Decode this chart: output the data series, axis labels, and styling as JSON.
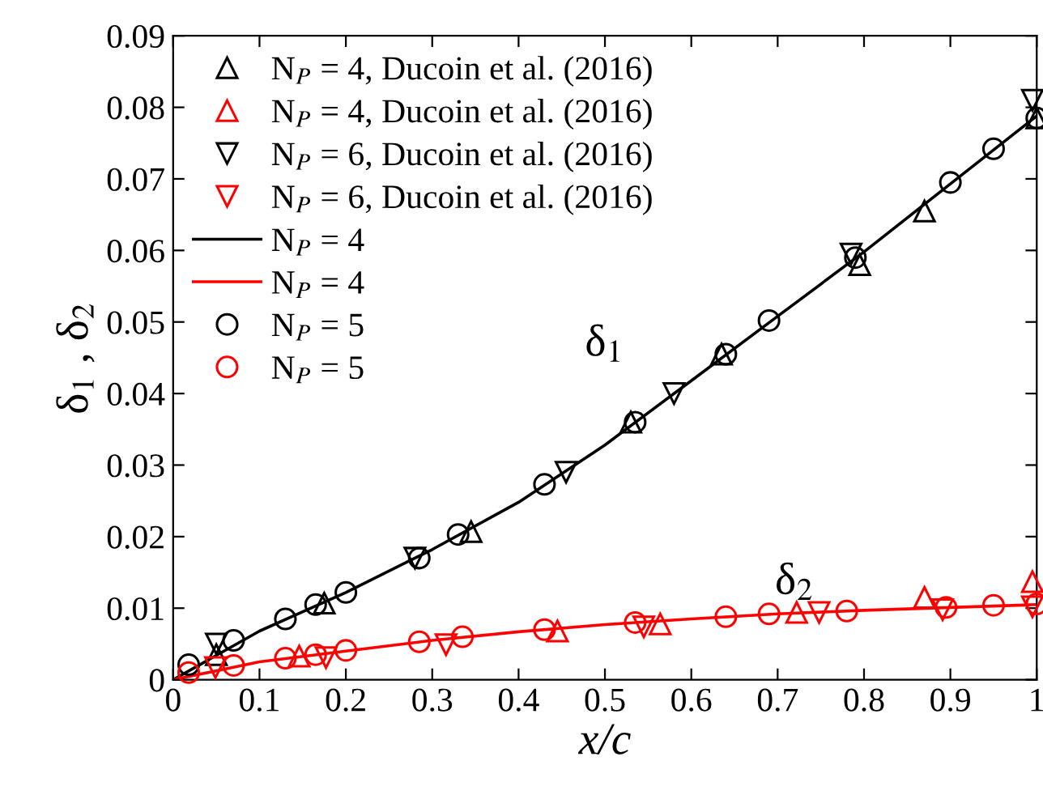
{
  "chart_data": {
    "type": "scatter",
    "xlabel": "x/c",
    "ylabel": "δ$_{1}$ , δ$_{2}$",
    "xlim": [
      0,
      1
    ],
    "ylim": [
      0,
      0.09
    ],
    "xticks": [
      0,
      0.1,
      0.2,
      0.3,
      0.4,
      0.5,
      0.6,
      0.7,
      0.8,
      0.9,
      1
    ],
    "yticks": [
      0,
      0.01,
      0.02,
      0.03,
      0.04,
      0.05,
      0.06,
      0.07,
      0.08,
      0.09
    ],
    "legend": "top left",
    "grid": false,
    "annotations": [
      "δ$_{1}$",
      "δ$_{2}$"
    ],
    "series": [
      {
        "marker": "triangle",
        "name": "N$_{P}$ = 4, Ducoin et al. (2016)",
        "color": "#000000",
        "x": [
          0.05,
          0.175,
          0.345,
          0.53,
          0.635,
          0.795,
          0.87,
          1.0
        ],
        "values": [
          0.0035,
          0.0107,
          0.0207,
          0.036,
          0.0455,
          0.058,
          0.0655,
          0.0785
        ]
      },
      {
        "marker": "triangle",
        "name": "N$_{P}$ = 4, Ducoin et al. (2016)",
        "color": "#ff0000",
        "x": [
          0.146,
          0.445,
          0.564,
          0.722,
          0.87,
          0.995
        ],
        "values": [
          0.0033,
          0.0068,
          0.0078,
          0.0094,
          0.0115,
          0.0137
        ]
      },
      {
        "marker": "triangle_down",
        "name": "N$_{P}$ = 6, Ducoin et al. (2016)",
        "color": "#000000",
        "x": [
          0.05,
          0.28,
          0.455,
          0.58,
          0.785,
          0.995
        ],
        "values": [
          0.005,
          0.017,
          0.029,
          0.04,
          0.0595,
          0.081
        ]
      },
      {
        "marker": "triangle_down",
        "name": "N$_{P}$ = 6, Ducoin et al. (2016)",
        "color": "#ff0000",
        "x": [
          0.049,
          0.177,
          0.316,
          0.545,
          0.748,
          0.891,
          0.995
        ],
        "values": [
          0.0017,
          0.0031,
          0.0049,
          0.0074,
          0.0094,
          0.0098,
          0.0102
        ]
      },
      {
        "type": "line",
        "name": "N$_{P}$ = 4",
        "color": "#000000",
        "x": [
          0,
          0.1,
          0.2,
          0.3,
          0.4,
          0.5,
          0.6,
          0.7,
          0.8,
          0.9,
          1.0
        ],
        "values": [
          0,
          0.0068,
          0.0122,
          0.0182,
          0.0248,
          0.0328,
          0.0418,
          0.0508,
          0.0598,
          0.0693,
          0.0788
        ]
      },
      {
        "type": "line",
        "name": "N$_{P}$ = 4",
        "color": "#ff0000",
        "x": [
          0,
          0.1,
          0.2,
          0.3,
          0.4,
          0.5,
          0.6,
          0.7,
          0.8,
          0.9,
          1.0
        ],
        "values": [
          0,
          0.0025,
          0.004,
          0.0055,
          0.0067,
          0.0077,
          0.0085,
          0.0092,
          0.0097,
          0.0101,
          0.0105
        ]
      },
      {
        "marker": "circle",
        "name": "N$_{P}$ = 5",
        "color": "#000000",
        "x": [
          0.018,
          0.07,
          0.13,
          0.165,
          0.2,
          0.285,
          0.33,
          0.43,
          0.535,
          0.64,
          0.69,
          0.79,
          0.9,
          0.95,
          1.0
        ],
        "values": [
          0.0021,
          0.0055,
          0.0085,
          0.0105,
          0.0122,
          0.017,
          0.0203,
          0.0273,
          0.036,
          0.0455,
          0.0502,
          0.059,
          0.0695,
          0.0742,
          0.0785
        ]
      },
      {
        "marker": "circle",
        "name": "N$_{P}$ = 5",
        "color": "#ff0000",
        "x": [
          0.018,
          0.07,
          0.13,
          0.165,
          0.2,
          0.285,
          0.335,
          0.43,
          0.535,
          0.64,
          0.69,
          0.78,
          0.895,
          0.95,
          1.0
        ],
        "values": [
          0.001,
          0.002,
          0.003,
          0.0035,
          0.0041,
          0.0053,
          0.006,
          0.007,
          0.008,
          0.0088,
          0.0092,
          0.0096,
          0.0101,
          0.0104,
          0.0106
        ]
      }
    ]
  }
}
